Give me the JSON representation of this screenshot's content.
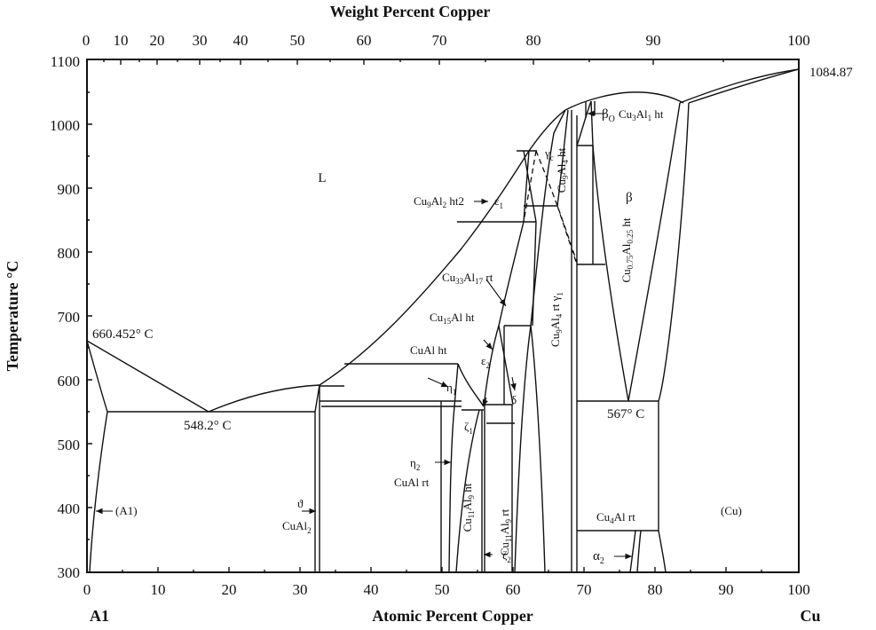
{
  "axes": {
    "top_title": "Weight Percent Copper",
    "bottom_title": "Atomic Percent Copper",
    "left_title": "Temperature °C",
    "top_ticks": [
      "0",
      "10",
      "20",
      "30",
      "40",
      "50",
      "60",
      "70",
      "80",
      "90",
      "100"
    ],
    "bottom_ticks": [
      "0",
      "10",
      "20",
      "30",
      "40",
      "50",
      "60",
      "70",
      "80",
      "90",
      "100"
    ],
    "y_ticks": [
      "300",
      "400",
      "500",
      "600",
      "700",
      "800",
      "900",
      "1000",
      "1100"
    ],
    "left_element": "A1",
    "right_element": "Cu"
  },
  "labels": {
    "liquid": "L",
    "al_melt": "660.452° C",
    "cu_melt": "1084.87",
    "eutectic_al": "548.2° C",
    "eutectoid_cu": "567° C",
    "al_phase": "(A1)",
    "cu_phase": "(Cu)",
    "theta": "ϑ",
    "cual2": "CuAl",
    "cual2_sub": "2",
    "eta2": "η",
    "eta2_sub": "2",
    "cual_rt": "CuAl rt",
    "cual_ht": "CuAl ht",
    "eta1": "η",
    "eta1_sub": "1",
    "zeta1": "ζ",
    "zeta1_sub": "1",
    "zeta2": "ζ",
    "zeta2_sub": "2",
    "cu11al9_ht": "Cu",
    "cu11al9_ht_a": "11",
    "cu11al9_ht_b": "Al",
    "cu11al9_ht_c": "9",
    "cu11al9_ht_d": " ht",
    "cu11al9_rt": "Cu",
    "cu11al9_rt_a": "11",
    "cu11al9_rt_b": "Al",
    "cu11al9_rt_c": "9",
    "cu11al9_rt_d": " rt",
    "cu15al_ht": "Cu",
    "cu15al_ht_a": "15",
    "cu15al_ht_b": "Al ht",
    "cu33al17_rt": "Cu",
    "cu33al17_rt_a": "33",
    "cu33al17_rt_b": "Al",
    "cu33al17_rt_c": "17",
    "cu33al17_rt_d": " rt",
    "eps2": "ε",
    "eps2_sub": "2",
    "eps1": "ε",
    "eps1_sub": "1",
    "delta": "δ",
    "cu9al2_ht2": "Cu",
    "cu9al2_ht2_a": "9",
    "cu9al2_ht2_b": "Al",
    "cu9al2_ht2_c": "2",
    "cu9al2_ht2_d": " ht2",
    "gamma_c": "γ",
    "gamma_c_sub": "c",
    "cu9al4_ht": "Cu",
    "cu9al4_ht_a": "9",
    "cu9al4_ht_b": "Al",
    "cu9al4_ht_c": "4",
    "cu9al4_ht_d": " ht",
    "cu9al4_rt": "Cu",
    "cu9al4_rt_a": "9",
    "cu9al4_rt_b": "Al",
    "cu9al4_rt_c": "4",
    "cu9al4_rt_d": " rt ",
    "gamma1": "γ",
    "gamma1_sub": "1",
    "beta0": "β",
    "beta0_sub": "O",
    "cu3al_ht": "Cu",
    "cu3al_ht_a": "3",
    "cu3al_ht_b": "Al",
    "cu3al_ht_c": "1",
    "cu3al_ht_d": " ht",
    "beta": "β",
    "cu075": "Cu",
    "cu075_a": "0.75",
    "cu075_b": "Al",
    "cu075_c": "0.25",
    "cu075_d": " ht",
    "cu4al_rt": "Cu",
    "cu4al_rt_a": "4",
    "cu4al_rt_b": "Al rt",
    "alpha2": "α",
    "alpha2_sub": "2"
  }
}
